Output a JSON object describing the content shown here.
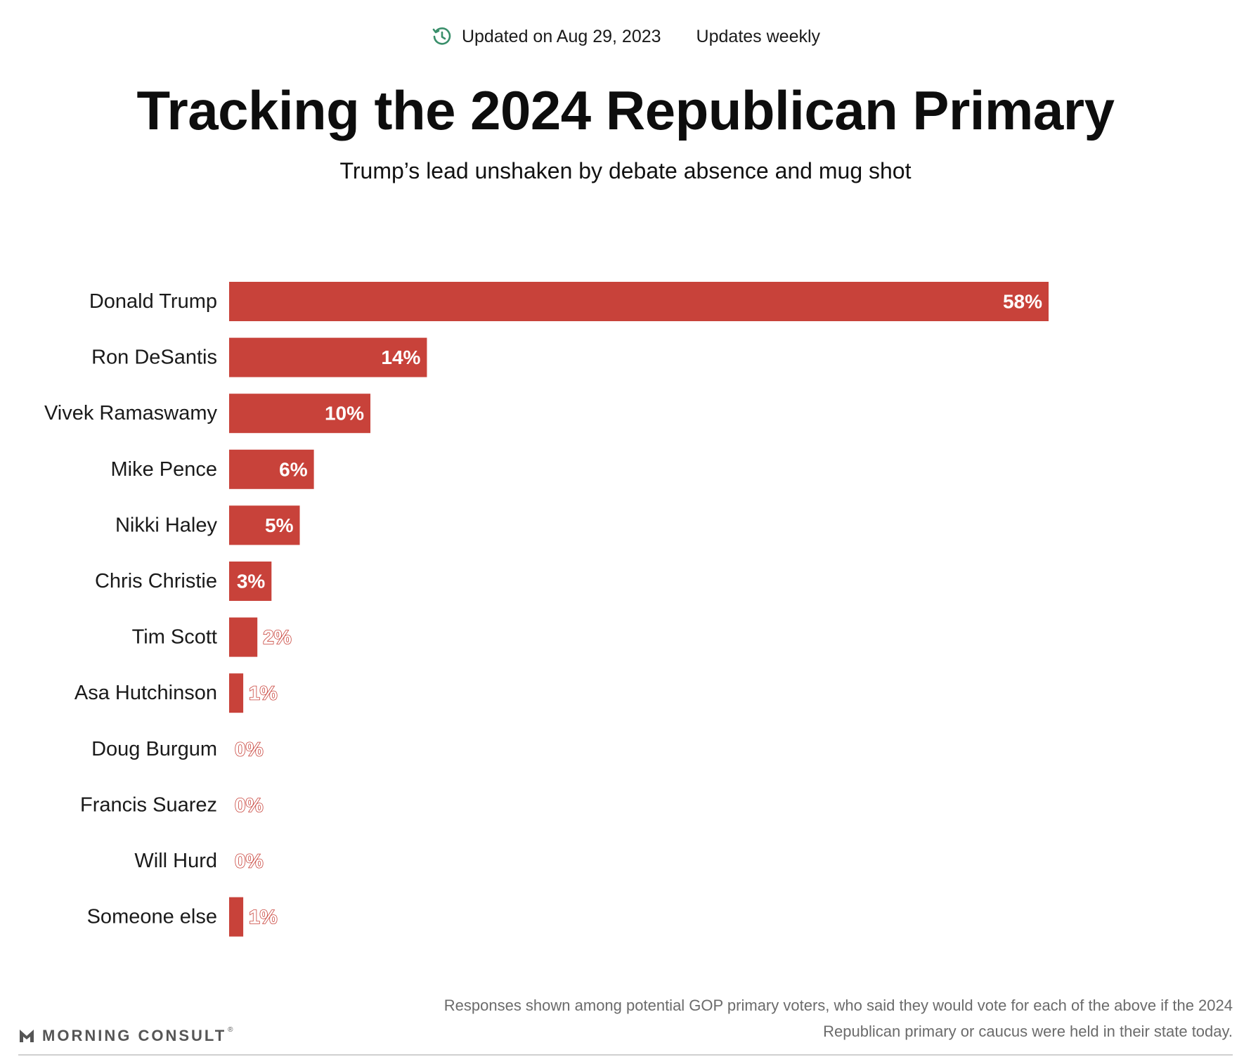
{
  "header": {
    "updated_label": "Updated on Aug 29, 2023",
    "frequency_label": "Updates weekly",
    "updated_icon": "history-icon",
    "icon_color": "#3a8f6b"
  },
  "title": "Tracking the 2024 Republican Primary",
  "subtitle": "Trump’s lead unshaken by debate absence and mug shot",
  "footnote": "Responses shown among potential GOP primary voters, who said they would vote for each of the above if the 2024 Republican primary or caucus were held in their state today.",
  "branding": {
    "logo_text": "MORNING CONSULT",
    "logo_tm": "®",
    "logo_icon": "morning-consult-logo-mark"
  },
  "colors": {
    "bar": "#c8423a",
    "label_inside": "#ffffff",
    "label_outline": "#c8423a"
  },
  "chart_data": {
    "type": "bar",
    "orientation": "horizontal",
    "categories": [
      "Donald Trump",
      "Ron DeSantis",
      "Vivek Ramaswamy",
      "Mike Pence",
      "Nikki Haley",
      "Chris Christie",
      "Tim Scott",
      "Asa Hutchinson",
      "Doug Burgum",
      "Francis Suarez",
      "Will Hurd",
      "Someone else"
    ],
    "values": [
      58,
      14,
      10,
      6,
      5,
      3,
      2,
      1,
      0,
      0,
      0,
      1
    ],
    "value_labels": [
      "58%",
      "14%",
      "10%",
      "6%",
      "5%",
      "3%",
      "2%",
      "1%",
      "0%",
      "0%",
      "0%",
      "1%"
    ],
    "unit": "%",
    "xlim": [
      0,
      58
    ],
    "grid": false,
    "legend": "none"
  }
}
